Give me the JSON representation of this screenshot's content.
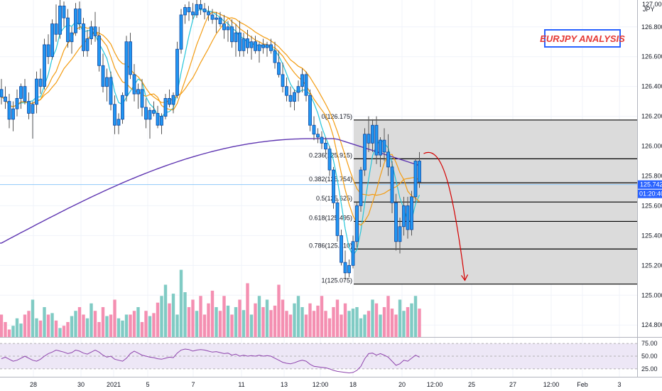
{
  "title": "EURJPY ANALYSIS",
  "top_right": {
    "price": "127.000",
    "unit": "JPY"
  },
  "colors": {
    "title_text": "#e53935",
    "title_border": "#2962ff",
    "candle_body": "#2196f3",
    "candle_border": "#0d47a1",
    "ma_fast": "#26c6da",
    "ma_mid": "#f39c12",
    "ma_slow": "#5e35b1",
    "vol_up": "#80cbc4",
    "vol_down": "#f48fb1",
    "rsi_line": "#8e44ad",
    "rsi_band": "#ede7f6",
    "fib_zone": "#d9d9d9",
    "arrow": "#d50000",
    "price_tag": "#2962ff"
  },
  "price_axis": {
    "ticks": [
      "126.800",
      "126.600",
      "126.400",
      "126.200",
      "126.000",
      "125.800",
      "125.600",
      "125.400",
      "125.200",
      "125.000",
      "124.800"
    ],
    "current_price": "125.742",
    "countdown": "01:20:40"
  },
  "time_axis": {
    "ticks": [
      "28",
      "30",
      "2021",
      "5",
      "7",
      "11",
      "13",
      "12:00",
      "18",
      "20",
      "12:00",
      "25",
      "27",
      "12:00",
      "Feb",
      "3"
    ]
  },
  "rsi_axis": {
    "ticks": [
      "75.00",
      "50.00",
      "25.00"
    ]
  },
  "fib_levels": [
    {
      "ratio": "0",
      "price": 126.175,
      "label": "0(126.175)"
    },
    {
      "ratio": "0.236",
      "price": 125.915,
      "label": "0.236(125.915)"
    },
    {
      "ratio": "0.382",
      "price": 125.754,
      "label": "0.382(125.754)"
    },
    {
      "ratio": "0.5",
      "price": 125.625,
      "label": "0.5(125.625)"
    },
    {
      "ratio": "0.618",
      "price": 125.495,
      "label": "0.618(125.495)"
    },
    {
      "ratio": "0.786",
      "price": 125.31,
      "label": "0.786(125.310)"
    },
    {
      "ratio": "1",
      "price": 125.075,
      "label": "1(125.075)"
    }
  ],
  "chart_data": {
    "type": "candlestick",
    "symbol": "EURJPY",
    "ylim": [
      124.72,
      126.98
    ],
    "candles": [
      [
        126.38,
        126.45,
        126.28,
        126.33
      ],
      [
        126.33,
        126.4,
        126.25,
        126.3
      ],
      [
        126.3,
        126.35,
        126.12,
        126.18
      ],
      [
        126.18,
        126.3,
        126.1,
        126.25
      ],
      [
        126.25,
        126.38,
        126.2,
        126.32
      ],
      [
        126.32,
        126.42,
        126.25,
        126.4
      ],
      [
        126.4,
        126.45,
        126.28,
        126.3
      ],
      [
        126.3,
        126.36,
        126.18,
        126.22
      ],
      [
        126.22,
        126.3,
        126.05,
        126.28
      ],
      [
        126.28,
        126.5,
        126.22,
        126.45
      ],
      [
        126.45,
        126.52,
        126.35,
        126.4
      ],
      [
        126.4,
        126.72,
        126.38,
        126.68
      ],
      [
        126.68,
        126.75,
        126.55,
        126.6
      ],
      [
        126.6,
        126.85,
        126.58,
        126.82
      ],
      [
        126.82,
        126.95,
        126.7,
        126.75
      ],
      [
        126.75,
        126.98,
        126.72,
        126.94
      ],
      [
        126.94,
        126.97,
        126.8,
        126.86
      ],
      [
        126.86,
        126.92,
        126.66,
        126.7
      ],
      [
        126.7,
        126.8,
        126.62,
        126.76
      ],
      [
        126.76,
        126.96,
        126.74,
        126.92
      ],
      [
        126.92,
        126.97,
        126.78,
        126.82
      ],
      [
        126.82,
        126.86,
        126.6,
        126.64
      ],
      [
        126.64,
        126.78,
        126.6,
        126.72
      ],
      [
        126.72,
        126.84,
        126.68,
        126.8
      ],
      [
        126.8,
        126.9,
        126.7,
        126.74
      ],
      [
        126.74,
        126.8,
        126.5,
        126.54
      ],
      [
        126.54,
        126.62,
        126.36,
        126.4
      ],
      [
        126.4,
        126.52,
        126.3,
        126.46
      ],
      [
        126.46,
        126.5,
        126.24,
        126.28
      ],
      [
        126.28,
        126.34,
        126.08,
        126.14
      ],
      [
        126.14,
        126.22,
        126.08,
        126.18
      ],
      [
        126.18,
        126.36,
        126.15,
        126.34
      ],
      [
        126.34,
        126.74,
        126.3,
        126.7
      ],
      [
        126.7,
        126.76,
        126.45,
        126.48
      ],
      [
        126.48,
        126.55,
        126.3,
        126.35
      ],
      [
        126.35,
        126.42,
        126.25,
        126.38
      ],
      [
        126.38,
        126.45,
        126.2,
        126.26
      ],
      [
        126.26,
        126.32,
        126.12,
        126.18
      ],
      [
        126.18,
        126.26,
        126.05,
        126.24
      ],
      [
        126.24,
        126.3,
        126.2,
        126.22
      ],
      [
        126.22,
        126.27,
        126.12,
        126.14
      ],
      [
        126.14,
        126.22,
        126.08,
        126.2
      ],
      [
        126.2,
        126.35,
        126.18,
        126.32
      ],
      [
        126.32,
        126.38,
        126.26,
        126.28
      ],
      [
        126.28,
        126.36,
        126.22,
        126.34
      ],
      [
        126.34,
        126.7,
        126.32,
        126.65
      ],
      [
        126.65,
        126.92,
        126.62,
        126.88
      ],
      [
        126.88,
        126.95,
        126.82,
        126.93
      ],
      [
        126.93,
        126.97,
        126.84,
        126.9
      ],
      [
        126.9,
        126.96,
        126.85,
        126.88
      ],
      [
        126.88,
        126.98,
        126.86,
        126.95
      ],
      [
        126.95,
        126.98,
        126.88,
        126.92
      ],
      [
        126.92,
        126.96,
        126.85,
        126.9
      ],
      [
        126.9,
        126.94,
        126.84,
        126.88
      ],
      [
        126.88,
        126.92,
        126.82,
        126.85
      ],
      [
        126.85,
        126.9,
        126.76,
        126.86
      ],
      [
        126.86,
        126.9,
        126.8,
        126.82
      ],
      [
        126.82,
        126.88,
        126.72,
        126.78
      ],
      [
        126.78,
        126.84,
        126.7,
        126.8
      ],
      [
        126.8,
        126.85,
        126.66,
        126.7
      ],
      [
        126.7,
        126.82,
        126.6,
        126.76
      ],
      [
        126.76,
        126.84,
        126.6,
        126.64
      ],
      [
        126.64,
        126.76,
        126.6,
        126.72
      ],
      [
        126.72,
        126.78,
        126.62,
        126.66
      ],
      [
        126.66,
        126.74,
        126.58,
        126.7
      ],
      [
        126.7,
        126.74,
        126.62,
        126.64
      ],
      [
        126.64,
        126.7,
        126.56,
        126.68
      ],
      [
        126.68,
        126.72,
        126.62,
        126.66
      ],
      [
        126.66,
        126.7,
        126.6,
        126.68
      ],
      [
        126.68,
        126.72,
        126.62,
        126.64
      ],
      [
        126.64,
        126.7,
        126.52,
        126.56
      ],
      [
        126.56,
        126.64,
        126.46,
        126.48
      ],
      [
        126.48,
        126.56,
        126.36,
        126.4
      ],
      [
        126.4,
        126.46,
        126.3,
        126.34
      ],
      [
        126.34,
        126.4,
        126.26,
        126.3
      ],
      [
        126.3,
        126.38,
        126.24,
        126.36
      ],
      [
        126.36,
        126.44,
        126.3,
        126.4
      ],
      [
        126.4,
        126.52,
        126.36,
        126.48
      ],
      [
        126.48,
        126.5,
        126.3,
        126.34
      ],
      [
        126.34,
        126.38,
        126.1,
        126.14
      ],
      [
        126.14,
        126.2,
        126.04,
        126.08
      ],
      [
        126.08,
        126.12,
        126.02,
        126.06
      ],
      [
        126.06,
        126.1,
        125.98,
        126.02
      ],
      [
        126.02,
        126.06,
        125.94,
        125.98
      ],
      [
        125.98,
        126.0,
        125.8,
        125.84
      ],
      [
        125.84,
        125.86,
        125.58,
        125.62
      ],
      [
        125.62,
        125.64,
        125.36,
        125.4
      ],
      [
        125.4,
        125.44,
        125.2,
        125.22
      ],
      [
        125.22,
        125.3,
        125.1,
        125.15
      ],
      [
        125.15,
        125.24,
        125.12,
        125.2
      ],
      [
        125.2,
        125.4,
        125.18,
        125.36
      ],
      [
        125.36,
        125.62,
        125.32,
        125.6
      ],
      [
        125.6,
        125.86,
        125.56,
        125.84
      ],
      [
        125.84,
        126.12,
        125.8,
        126.08
      ],
      [
        126.08,
        126.2,
        125.96,
        126.02
      ],
      [
        126.02,
        126.18,
        125.96,
        126.14
      ],
      [
        126.14,
        126.2,
        125.88,
        125.94
      ],
      [
        125.94,
        126.06,
        125.86,
        126.04
      ],
      [
        126.04,
        126.12,
        125.9,
        125.96
      ],
      [
        125.96,
        126.08,
        125.8,
        125.86
      ],
      [
        125.86,
        125.9,
        125.55,
        125.62
      ],
      [
        125.62,
        125.68,
        125.3,
        125.36
      ],
      [
        125.36,
        125.52,
        125.28,
        125.46
      ],
      [
        125.46,
        125.66,
        125.4,
        125.6
      ],
      [
        125.6,
        125.66,
        125.38,
        125.44
      ],
      [
        125.44,
        125.7,
        125.4,
        125.66
      ],
      [
        125.66,
        125.92,
        125.62,
        125.9
      ],
      [
        125.9,
        125.96,
        125.72,
        125.76
      ]
    ],
    "volume_relative": [
      0.3,
      0.2,
      0.1,
      0.15,
      0.25,
      0.18,
      0.3,
      0.35,
      0.5,
      0.25,
      0.22,
      0.4,
      0.3,
      0.32,
      0.22,
      0.12,
      0.15,
      0.2,
      0.28,
      0.35,
      0.4,
      0.3,
      0.25,
      0.45,
      0.35,
      0.2,
      0.4,
      0.28,
      0.3,
      0.5,
      0.25,
      0.22,
      0.3,
      0.3,
      0.35,
      0.4,
      0.2,
      0.35,
      0.28,
      0.32,
      0.46,
      0.55,
      0.7,
      0.45,
      0.58,
      0.3,
      0.9,
      0.6,
      0.4,
      0.5,
      0.35,
      0.55,
      0.3,
      0.45,
      0.62,
      0.4,
      0.35,
      0.55,
      0.42,
      0.3,
      0.4,
      0.5,
      0.36,
      0.72,
      0.3,
      0.45,
      0.55,
      0.4,
      0.5,
      0.36,
      0.42,
      0.7,
      0.5,
      0.35,
      0.3,
      0.45,
      0.55,
      0.4,
      0.3,
      0.45,
      0.35,
      0.42,
      0.55,
      0.35,
      0.25,
      0.4,
      0.5,
      0.3,
      0.45,
      0.35,
      0.38,
      0.4,
      0.25,
      0.3,
      0.35,
      0.5,
      0.45,
      0.3,
      0.4,
      0.55,
      0.38,
      0.3,
      0.5,
      0.35,
      0.4,
      0.45,
      0.55,
      0.38
    ],
    "rsi": [
      45,
      48,
      44,
      40,
      42,
      46,
      50,
      46,
      42,
      40,
      44,
      50,
      55,
      58,
      62,
      60,
      58,
      55,
      57,
      62,
      60,
      56,
      54,
      58,
      62,
      58,
      52,
      48,
      50,
      44,
      42,
      40,
      46,
      55,
      60,
      56,
      52,
      50,
      48,
      47,
      45,
      44,
      46,
      48,
      47,
      56,
      62,
      64,
      63,
      60,
      62,
      63,
      62,
      60,
      58,
      59,
      57,
      55,
      56,
      52,
      54,
      50,
      52,
      50,
      51,
      50,
      52,
      50,
      51,
      50,
      46,
      42,
      38,
      36,
      35,
      37,
      40,
      42,
      40,
      34,
      30,
      29,
      28,
      27,
      25,
      22,
      20,
      19,
      18,
      17,
      18,
      22,
      30,
      45,
      55,
      56,
      52,
      55,
      52,
      48,
      40,
      32,
      35,
      42,
      40,
      46,
      52,
      48
    ]
  }
}
